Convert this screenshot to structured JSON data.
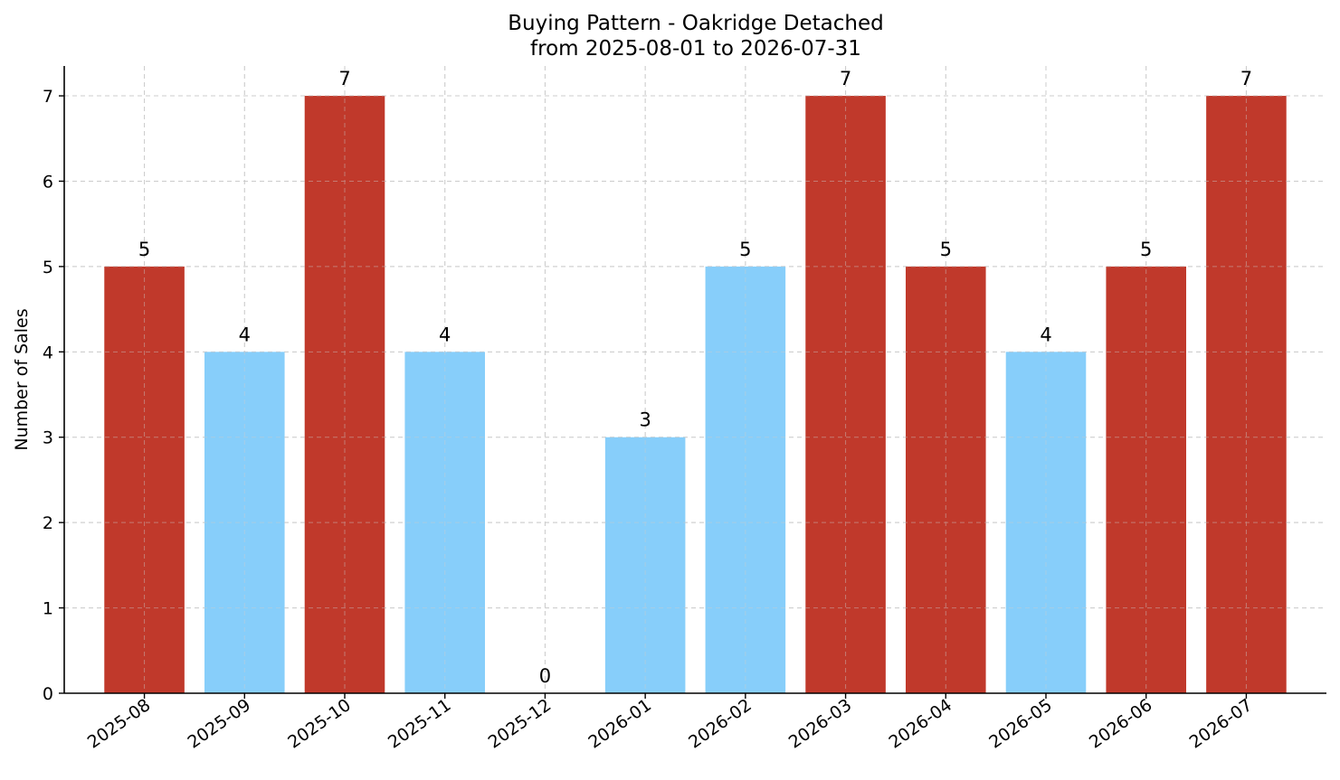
{
  "chart_data": {
    "type": "bar",
    "title": "Buying Pattern - Oakridge Detached",
    "subtitle": "from 2025-08-01 to 2026-07-31",
    "xlabel": "",
    "ylabel": "Number of Sales",
    "categories": [
      "2025-08",
      "2025-09",
      "2025-10",
      "2025-11",
      "2025-12",
      "2026-01",
      "2026-02",
      "2026-03",
      "2026-04",
      "2026-05",
      "2026-06",
      "2026-07"
    ],
    "values": [
      5,
      4,
      7,
      4,
      0,
      3,
      5,
      7,
      5,
      4,
      5,
      7
    ],
    "bar_colors": [
      "#c0392b",
      "#87cefa",
      "#c0392b",
      "#87cefa",
      "#87cefa",
      "#87cefa",
      "#87cefa",
      "#c0392b",
      "#c0392b",
      "#87cefa",
      "#c0392b",
      "#c0392b"
    ],
    "colors": {
      "high": "#c0392b",
      "low": "#87cefa"
    },
    "yticks": [
      0,
      1,
      2,
      3,
      4,
      5,
      6,
      7
    ],
    "ylim": [
      0,
      7.35
    ],
    "grid": true,
    "data_labels": true
  }
}
